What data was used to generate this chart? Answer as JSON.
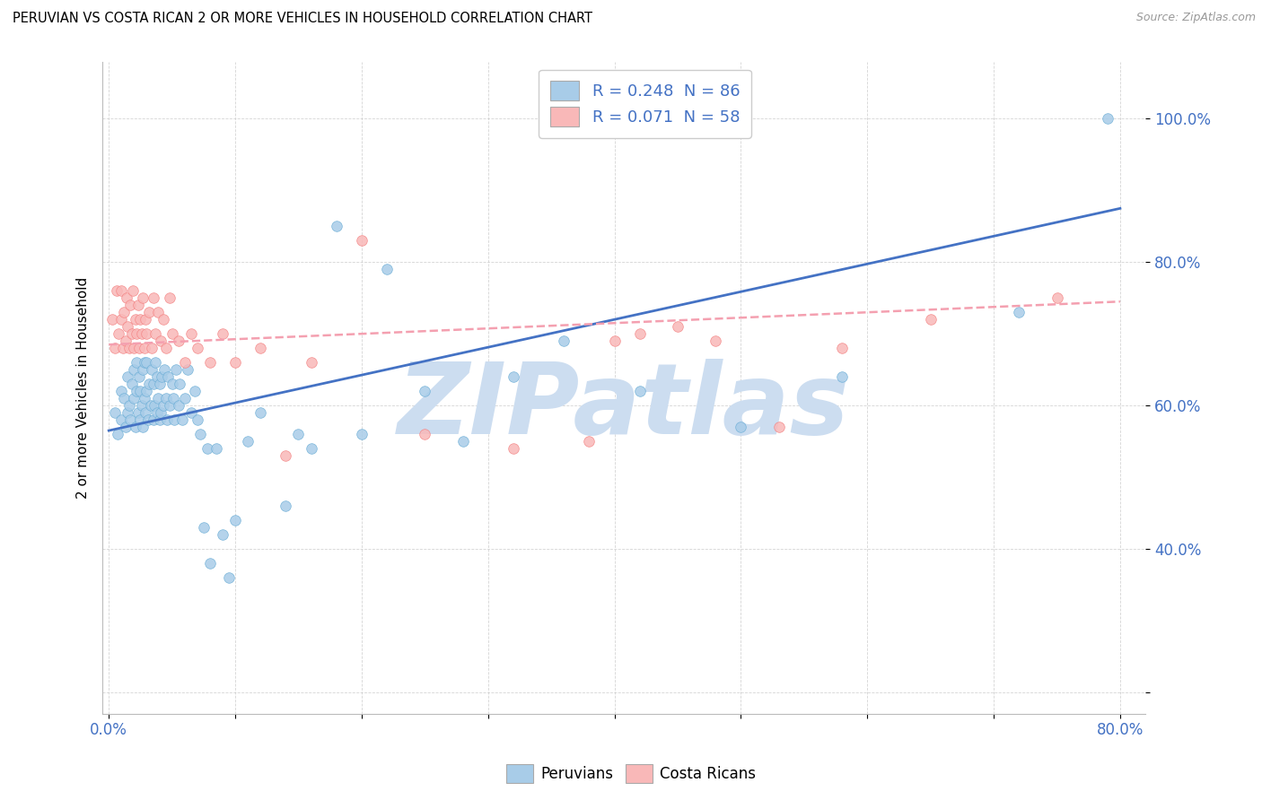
{
  "title": "PERUVIAN VS COSTA RICAN 2 OR MORE VEHICLES IN HOUSEHOLD CORRELATION CHART",
  "source": "Source: ZipAtlas.com",
  "ylabel": "2 or more Vehicles in Household",
  "xlim": [
    -0.005,
    0.82
  ],
  "ylim": [
    0.17,
    1.08
  ],
  "xtick_positions": [
    0.0,
    0.1,
    0.2,
    0.3,
    0.4,
    0.5,
    0.6,
    0.7,
    0.8
  ],
  "xticklabels": [
    "0.0%",
    "",
    "",
    "",
    "",
    "",
    "",
    "",
    "80.0%"
  ],
  "ytick_positions": [
    0.2,
    0.4,
    0.6,
    0.8,
    1.0
  ],
  "yticklabels": [
    "",
    "40.0%",
    "60.0%",
    "80.0%",
    "100.0%"
  ],
  "peruvian_color": "#a8cce8",
  "peruvian_edge_color": "#6baed6",
  "costa_rican_color": "#f9b8b8",
  "costa_rican_edge_color": "#f48080",
  "peruvian_R": 0.248,
  "peruvian_N": 86,
  "costa_rican_R": 0.071,
  "costa_rican_N": 58,
  "trend_blue_color": "#4472c4",
  "trend_pink_color": "#f4a0b0",
  "watermark_text": "ZIPatlas",
  "watermark_color": "#ccddf0",
  "legend_label_1": "Peruvians",
  "legend_label_2": "Costa Ricans",
  "trend_blue_y0": 0.565,
  "trend_blue_y1": 0.875,
  "trend_pink_y0": 0.685,
  "trend_pink_y1": 0.745,
  "peruvian_x": [
    0.005,
    0.007,
    0.01,
    0.01,
    0.012,
    0.013,
    0.015,
    0.015,
    0.016,
    0.017,
    0.018,
    0.02,
    0.02,
    0.021,
    0.022,
    0.022,
    0.023,
    0.024,
    0.025,
    0.025,
    0.026,
    0.027,
    0.027,
    0.028,
    0.028,
    0.029,
    0.03,
    0.03,
    0.031,
    0.032,
    0.033,
    0.034,
    0.035,
    0.035,
    0.036,
    0.037,
    0.038,
    0.038,
    0.039,
    0.04,
    0.04,
    0.041,
    0.042,
    0.043,
    0.044,
    0.045,
    0.046,
    0.047,
    0.048,
    0.05,
    0.051,
    0.052,
    0.053,
    0.055,
    0.056,
    0.058,
    0.06,
    0.062,
    0.065,
    0.068,
    0.07,
    0.072,
    0.075,
    0.078,
    0.08,
    0.085,
    0.09,
    0.095,
    0.1,
    0.11,
    0.12,
    0.14,
    0.15,
    0.16,
    0.18,
    0.2,
    0.22,
    0.25,
    0.28,
    0.32,
    0.36,
    0.42,
    0.5,
    0.58,
    0.72,
    0.79
  ],
  "peruvian_y": [
    0.59,
    0.56,
    0.62,
    0.58,
    0.61,
    0.57,
    0.64,
    0.59,
    0.6,
    0.58,
    0.63,
    0.61,
    0.65,
    0.57,
    0.62,
    0.66,
    0.59,
    0.64,
    0.58,
    0.62,
    0.6,
    0.65,
    0.57,
    0.61,
    0.66,
    0.59,
    0.62,
    0.66,
    0.58,
    0.63,
    0.6,
    0.65,
    0.58,
    0.63,
    0.6,
    0.66,
    0.59,
    0.64,
    0.61,
    0.58,
    0.63,
    0.59,
    0.64,
    0.6,
    0.65,
    0.61,
    0.58,
    0.64,
    0.6,
    0.63,
    0.61,
    0.58,
    0.65,
    0.6,
    0.63,
    0.58,
    0.61,
    0.65,
    0.59,
    0.62,
    0.58,
    0.56,
    0.43,
    0.54,
    0.38,
    0.54,
    0.42,
    0.36,
    0.44,
    0.55,
    0.59,
    0.46,
    0.56,
    0.54,
    0.85,
    0.56,
    0.79,
    0.62,
    0.55,
    0.64,
    0.69,
    0.62,
    0.57,
    0.64,
    0.73,
    1.0
  ],
  "costa_rican_x": [
    0.003,
    0.005,
    0.006,
    0.008,
    0.01,
    0.01,
    0.011,
    0.012,
    0.013,
    0.014,
    0.015,
    0.016,
    0.017,
    0.018,
    0.019,
    0.02,
    0.021,
    0.022,
    0.023,
    0.024,
    0.025,
    0.026,
    0.027,
    0.028,
    0.029,
    0.03,
    0.032,
    0.034,
    0.035,
    0.037,
    0.039,
    0.041,
    0.043,
    0.045,
    0.048,
    0.05,
    0.055,
    0.06,
    0.065,
    0.07,
    0.08,
    0.09,
    0.1,
    0.12,
    0.14,
    0.16,
    0.2,
    0.25,
    0.32,
    0.38,
    0.4,
    0.42,
    0.45,
    0.48,
    0.53,
    0.58,
    0.65,
    0.75
  ],
  "costa_rican_y": [
    0.72,
    0.68,
    0.76,
    0.7,
    0.72,
    0.76,
    0.68,
    0.73,
    0.69,
    0.75,
    0.71,
    0.68,
    0.74,
    0.7,
    0.76,
    0.68,
    0.72,
    0.7,
    0.74,
    0.68,
    0.72,
    0.7,
    0.75,
    0.68,
    0.72,
    0.7,
    0.73,
    0.68,
    0.75,
    0.7,
    0.73,
    0.69,
    0.72,
    0.68,
    0.75,
    0.7,
    0.69,
    0.66,
    0.7,
    0.68,
    0.66,
    0.7,
    0.66,
    0.68,
    0.53,
    0.66,
    0.83,
    0.56,
    0.54,
    0.55,
    0.69,
    0.7,
    0.71,
    0.69,
    0.57,
    0.68,
    0.72,
    0.75
  ]
}
